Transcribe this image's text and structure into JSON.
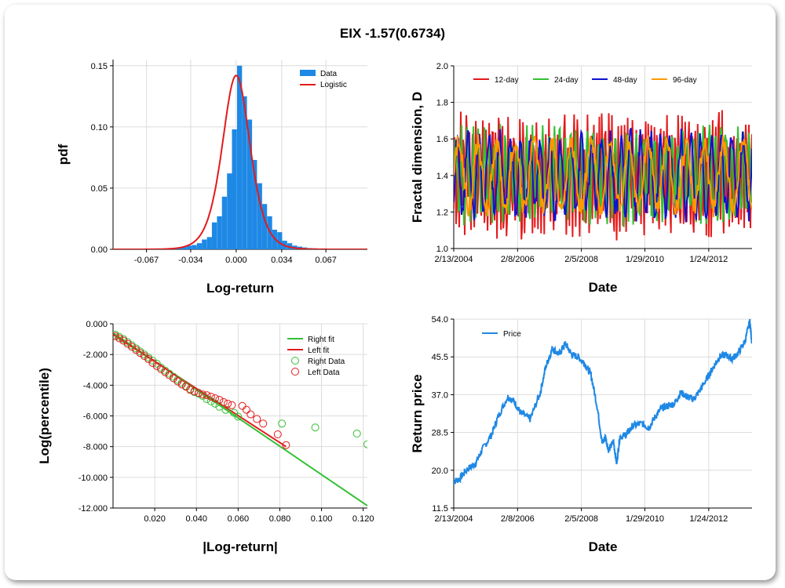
{
  "title": "EIX -1.57(0.6734)",
  "chart_data": [
    {
      "type": "bar",
      "id": "pdf",
      "xlabel": "Log-return",
      "ylabel": "pdf",
      "xlim": [
        -0.092,
        0.098
      ],
      "ylim": [
        0,
        0.155
      ],
      "x_ticks": [
        -0.067,
        -0.034,
        0.0,
        0.034,
        0.067
      ],
      "x_tick_labels": [
        "-0.067",
        "-0.034",
        "0.000",
        "0.034",
        "0.067"
      ],
      "y_ticks": [
        0.0,
        0.05,
        0.1,
        0.15
      ],
      "y_tick_labels": [
        "0.00",
        "0.05",
        "0.10",
        "0.15"
      ],
      "legend": [
        "Data",
        "Logistic"
      ],
      "legend_position": "top-right",
      "bar_width": 0.0037,
      "bars": {
        "x": [
          -0.0784,
          -0.0722,
          -0.0655,
          -0.0592,
          -0.0536,
          -0.05,
          -0.0462,
          -0.0425,
          -0.0388,
          -0.035,
          -0.0313,
          -0.0275,
          -0.0238,
          -0.02,
          -0.0163,
          -0.0125,
          -0.0088,
          -0.005,
          -0.0013,
          0.0025,
          0.0062,
          0.01,
          0.0137,
          0.0175,
          0.0212,
          0.025,
          0.0287,
          0.0325,
          0.0362,
          0.04,
          0.0437,
          0.0475,
          0.0512,
          0.055,
          0.0587,
          0.0625,
          0.07,
          0.078
        ],
        "values": [
          0.0005,
          0.0005,
          0.0005,
          0.0005,
          0.0006,
          0.0008,
          0.001,
          0.001,
          0.002,
          0.003,
          0.0035,
          0.005,
          0.008,
          0.01,
          0.022,
          0.027,
          0.043,
          0.062,
          0.098,
          0.15,
          0.125,
          0.106,
          0.073,
          0.054,
          0.037,
          0.027,
          0.016,
          0.014,
          0.007,
          0.005,
          0.003,
          0.0022,
          0.0015,
          0.001,
          0.0008,
          0.0005,
          0.0005,
          0.0003
        ]
      },
      "logistic": {
        "mu": 0.0,
        "s": 0.00174,
        "color": "#e41a1c"
      },
      "bar_color": "#1e88e5"
    },
    {
      "type": "line",
      "id": "fractal",
      "xlabel": "Date",
      "ylabel": "Fractal dimension, D",
      "xlim": [
        2004.12,
        2013.42
      ],
      "ylim": [
        1.0,
        2.0
      ],
      "x_ticks": [
        2004.12,
        2006.11,
        2008.1,
        2010.08,
        2012.07
      ],
      "x_tick_labels": [
        "2/13/2004",
        "2/8/2006",
        "2/5/2008",
        "1/29/2010",
        "1/24/2012"
      ],
      "y_ticks": [
        1.0,
        1.2,
        1.4,
        1.6,
        1.8,
        2.0
      ],
      "y_tick_labels": [
        "1.0",
        "1.2",
        "1.4",
        "1.6",
        "1.8",
        "2.0"
      ],
      "legend_position": "top",
      "series": [
        {
          "name": "12-day",
          "color": "#e41a1c",
          "seed": 12,
          "period": 4,
          "mean": 1.4,
          "amp": 0.28
        },
        {
          "name": "24-day",
          "color": "#33c033",
          "seed": 24,
          "period": 7,
          "mean": 1.4,
          "amp": 0.22
        },
        {
          "name": "48-day",
          "color": "#1010d0",
          "seed": 48,
          "period": 13,
          "mean": 1.4,
          "amp": 0.2
        },
        {
          "name": "96-day",
          "color": "#ff9900",
          "seed": 96,
          "period": 24,
          "mean": 1.4,
          "amp": 0.18
        }
      ]
    },
    {
      "type": "scatter",
      "id": "tails",
      "xlabel": "|Log-return|",
      "ylabel": "Log(percentile)",
      "xlim": [
        0.0,
        0.122
      ],
      "ylim": [
        -12.0,
        0.0
      ],
      "x_ticks": [
        0.02,
        0.04,
        0.06,
        0.08,
        0.1,
        0.12
      ],
      "x_tick_labels": [
        "0.020",
        "0.040",
        "0.060",
        "0.080",
        "0.100",
        "0.120"
      ],
      "y_ticks": [
        0,
        -2,
        -4,
        -6,
        -8,
        -10,
        -12
      ],
      "y_tick_labels": [
        "0.000",
        "-2.000",
        "-4.000",
        "-6.000",
        "-8.000",
        "-10.000",
        "-12.000"
      ],
      "legend": [
        "Right fit",
        "Left fit",
        "Right Data",
        "Left Data"
      ],
      "legend_position": "top-right",
      "right_fit": {
        "x": [
          0.0,
          0.122
        ],
        "y": [
          -0.6,
          -11.85
        ],
        "color": "#33c033"
      },
      "left_fit": {
        "x": [
          0.0,
          0.083
        ],
        "y": [
          -0.7,
          -8.0
        ],
        "color": "#e41a1c"
      },
      "right_points": [
        [
          0.001,
          -0.7
        ],
        [
          0.003,
          -0.85
        ],
        [
          0.005,
          -1.0
        ],
        [
          0.007,
          -1.2
        ],
        [
          0.009,
          -1.4
        ],
        [
          0.011,
          -1.6
        ],
        [
          0.013,
          -1.8
        ],
        [
          0.015,
          -2.0
        ],
        [
          0.017,
          -2.2
        ],
        [
          0.019,
          -2.4
        ],
        [
          0.021,
          -2.6
        ],
        [
          0.023,
          -2.85
        ],
        [
          0.025,
          -3.05
        ],
        [
          0.027,
          -3.25
        ],
        [
          0.029,
          -3.45
        ],
        [
          0.031,
          -3.65
        ],
        [
          0.033,
          -3.85
        ],
        [
          0.035,
          -4.05
        ],
        [
          0.037,
          -4.25
        ],
        [
          0.039,
          -4.45
        ],
        [
          0.041,
          -4.55
        ],
        [
          0.043,
          -4.7
        ],
        [
          0.045,
          -4.9
        ],
        [
          0.047,
          -5.05
        ],
        [
          0.049,
          -5.2
        ],
        [
          0.051,
          -5.4
        ],
        [
          0.054,
          -5.6
        ],
        [
          0.058,
          -5.8
        ],
        [
          0.06,
          -6.05
        ],
        [
          0.081,
          -6.5
        ],
        [
          0.097,
          -6.75
        ],
        [
          0.117,
          -7.15
        ],
        [
          0.122,
          -7.85
        ]
      ],
      "left_points": [
        [
          0.001,
          -0.8
        ],
        [
          0.003,
          -0.95
        ],
        [
          0.005,
          -1.1
        ],
        [
          0.007,
          -1.3
        ],
        [
          0.009,
          -1.5
        ],
        [
          0.011,
          -1.7
        ],
        [
          0.013,
          -1.9
        ],
        [
          0.015,
          -2.1
        ],
        [
          0.017,
          -2.3
        ],
        [
          0.019,
          -2.55
        ],
        [
          0.021,
          -2.75
        ],
        [
          0.023,
          -2.95
        ],
        [
          0.025,
          -3.15
        ],
        [
          0.027,
          -3.35
        ],
        [
          0.029,
          -3.55
        ],
        [
          0.031,
          -3.75
        ],
        [
          0.033,
          -3.95
        ],
        [
          0.035,
          -4.1
        ],
        [
          0.037,
          -4.3
        ],
        [
          0.039,
          -4.4
        ],
        [
          0.041,
          -4.5
        ],
        [
          0.043,
          -4.6
        ],
        [
          0.045,
          -4.65
        ],
        [
          0.047,
          -4.75
        ],
        [
          0.049,
          -4.85
        ],
        [
          0.051,
          -4.95
        ],
        [
          0.053,
          -5.1
        ],
        [
          0.055,
          -5.2
        ],
        [
          0.057,
          -5.3
        ],
        [
          0.062,
          -5.35
        ],
        [
          0.064,
          -5.6
        ],
        [
          0.066,
          -5.9
        ],
        [
          0.069,
          -6.2
        ],
        [
          0.072,
          -6.5
        ],
        [
          0.079,
          -7.2
        ],
        [
          0.083,
          -7.9
        ]
      ],
      "right_color": "#33c033",
      "left_color": "#e41a1c"
    },
    {
      "type": "line",
      "id": "price",
      "xlabel": "Date",
      "ylabel": "Return price",
      "xlim": [
        2004.12,
        2013.42
      ],
      "ylim": [
        11.5,
        54.0
      ],
      "x_ticks": [
        2004.12,
        2006.11,
        2008.1,
        2010.08,
        2012.07
      ],
      "x_tick_labels": [
        "2/13/2004",
        "2/8/2006",
        "2/5/2008",
        "1/29/2010",
        "1/24/2012"
      ],
      "y_ticks": [
        11.5,
        20.0,
        28.5,
        37.0,
        45.5,
        54.0
      ],
      "y_tick_labels": [
        "11.5",
        "20.0",
        "28.5",
        "37.0",
        "45.5",
        "54.0"
      ],
      "legend_position": "top-left",
      "series": [
        {
          "name": "Price",
          "color": "#1e88e5",
          "x": [
            2004.12,
            2004.3,
            2004.5,
            2004.8,
            2005.0,
            2005.3,
            2005.5,
            2005.8,
            2006.0,
            2006.2,
            2006.5,
            2006.8,
            2007.0,
            2007.2,
            2007.4,
            2007.6,
            2007.8,
            2008.0,
            2008.2,
            2008.4,
            2008.6,
            2008.75,
            2008.85,
            2008.95,
            2009.1,
            2009.2,
            2009.3,
            2009.5,
            2009.7,
            2010.0,
            2010.2,
            2010.4,
            2010.6,
            2010.8,
            2011.0,
            2011.2,
            2011.4,
            2011.6,
            2011.8,
            2012.0,
            2012.2,
            2012.4,
            2012.6,
            2012.8,
            2013.0,
            2013.2,
            2013.35,
            2013.42
          ],
          "y": [
            17.5,
            18.0,
            20.0,
            21.5,
            24.5,
            28.0,
            32.0,
            36.5,
            35.5,
            33.0,
            31.5,
            37.0,
            43.5,
            47.5,
            46.0,
            48.5,
            46.0,
            45.5,
            44.0,
            41.5,
            34.0,
            26.0,
            27.5,
            24.5,
            26.5,
            21.5,
            27.5,
            28.0,
            30.0,
            30.5,
            29.5,
            32.0,
            34.0,
            34.5,
            35.0,
            37.5,
            36.5,
            36.0,
            38.0,
            40.5,
            43.0,
            45.5,
            46.0,
            45.0,
            46.5,
            49.0,
            53.5,
            48.5
          ]
        }
      ]
    }
  ]
}
